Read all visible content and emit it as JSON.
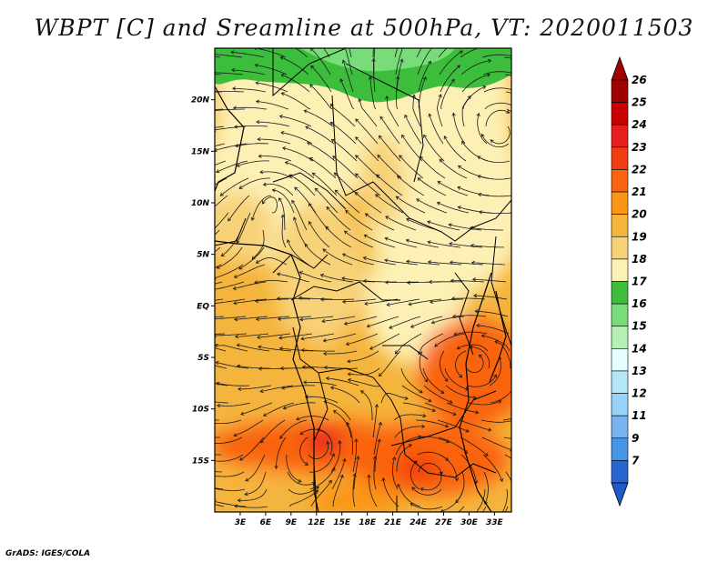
{
  "title": "WBPT [C] and Sreamline at 500hPa, VT: 2020011503",
  "footer": "GrADS: IGES/COLA",
  "map": {
    "lon_range": [
      0,
      35
    ],
    "lat_range": [
      -20,
      25
    ],
    "lat_ticks": [
      {
        "value": 20,
        "label": "20N"
      },
      {
        "value": 15,
        "label": "15N"
      },
      {
        "value": 10,
        "label": "10N"
      },
      {
        "value": 5,
        "label": "5N"
      },
      {
        "value": 0,
        "label": "EQ"
      },
      {
        "value": -5,
        "label": "5S"
      },
      {
        "value": -10,
        "label": "10S"
      },
      {
        "value": -15,
        "label": "15S"
      }
    ],
    "lon_ticks": [
      {
        "value": 3,
        "label": "3E"
      },
      {
        "value": 6,
        "label": "6E"
      },
      {
        "value": 9,
        "label": "9E"
      },
      {
        "value": 12,
        "label": "12E"
      },
      {
        "value": 15,
        "label": "15E"
      },
      {
        "value": 18,
        "label": "18E"
      },
      {
        "value": 21,
        "label": "21E"
      },
      {
        "value": 24,
        "label": "24E"
      },
      {
        "value": 27,
        "label": "27E"
      },
      {
        "value": 30,
        "label": "30E"
      },
      {
        "value": 33,
        "label": "33E"
      }
    ]
  },
  "colorbar": {
    "levels": [
      {
        "label": "26",
        "color": "#a00000"
      },
      {
        "label": "25",
        "color": "#c80000"
      },
      {
        "label": "24",
        "color": "#e61e1e"
      },
      {
        "label": "23",
        "color": "#f03c10"
      },
      {
        "label": "22",
        "color": "#fa6410"
      },
      {
        "label": "21",
        "color": "#fa9614"
      },
      {
        "label": "20",
        "color": "#f5b43c"
      },
      {
        "label": "19",
        "color": "#f8d278"
      },
      {
        "label": "18",
        "color": "#fcf0b4"
      },
      {
        "label": "17",
        "color": "#3cbe3c"
      },
      {
        "label": "16",
        "color": "#78dc78"
      },
      {
        "label": "15",
        "color": "#b4f0b4"
      },
      {
        "label": "14",
        "color": "#e6ffff"
      },
      {
        "label": "13",
        "color": "#b4e6fa"
      },
      {
        "label": "12",
        "color": "#96d2fa"
      },
      {
        "label": "11",
        "color": "#78b4f0"
      },
      {
        "label": "9",
        "color": "#4696e6"
      },
      {
        "label": "7",
        "color": "#2864d2"
      }
    ],
    "top_arrow_color": "#a00000",
    "bottom_arrow_color": "#1e5ac8"
  }
}
